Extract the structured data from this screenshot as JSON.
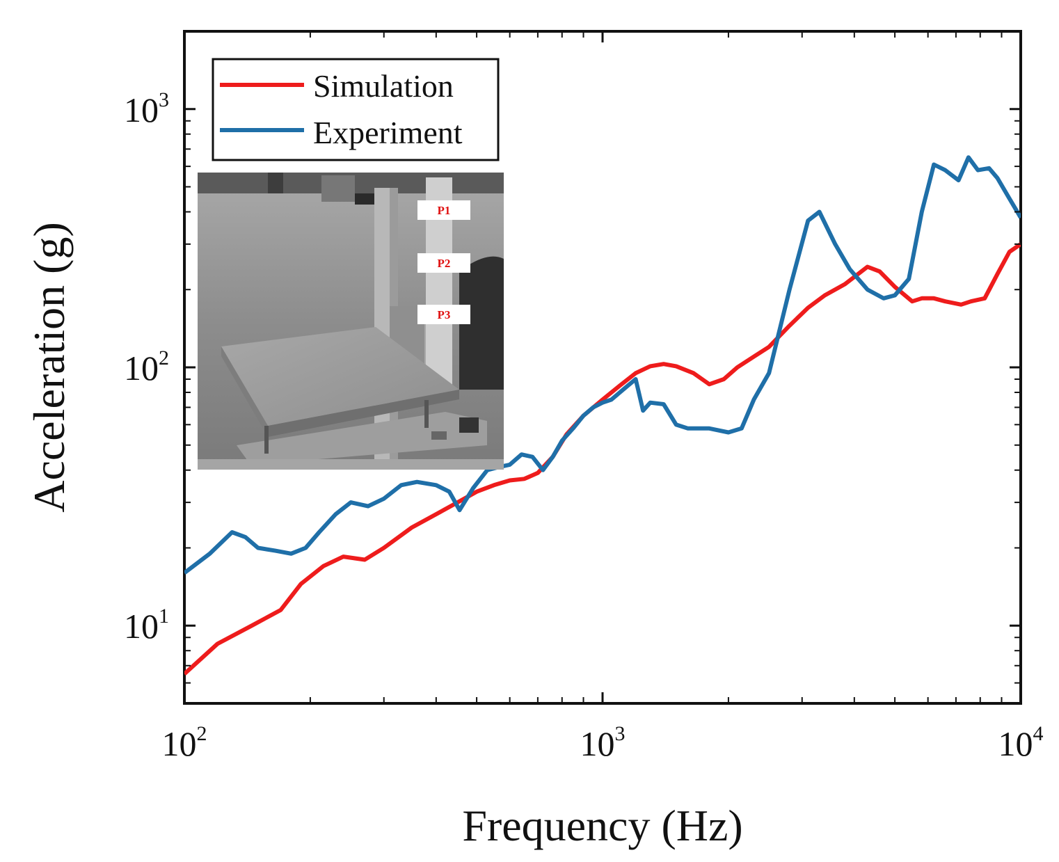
{
  "chart_data": {
    "type": "line",
    "title": "",
    "xlabel": "Frequency (Hz)",
    "ylabel": "Acceleration (g)",
    "x_scale": "log",
    "y_scale": "log",
    "xlim": [
      100,
      10000
    ],
    "ylim": [
      5,
      2000
    ],
    "x_ticks": [
      {
        "base": "10",
        "exp": "2",
        "value": 100
      },
      {
        "base": "10",
        "exp": "3",
        "value": 1000
      },
      {
        "base": "10",
        "exp": "4",
        "value": 10000
      }
    ],
    "y_ticks": [
      {
        "base": "10",
        "exp": "1",
        "value": 10
      },
      {
        "base": "10",
        "exp": "2",
        "value": 100
      },
      {
        "base": "10",
        "exp": "3",
        "value": 1000
      }
    ],
    "legend": {
      "position": "top-left"
    },
    "series": [
      {
        "name": "Simulation",
        "color": "#ee1c1c",
        "x": [
          100,
          120,
          145,
          170,
          190,
          215,
          240,
          270,
          300,
          350,
          400,
          450,
          500,
          550,
          600,
          650,
          700,
          760,
          820,
          900,
          1000,
          1100,
          1200,
          1300,
          1400,
          1500,
          1650,
          1800,
          1950,
          2100,
          2300,
          2500,
          2800,
          3100,
          3400,
          3800,
          4300,
          4600,
          5000,
          5500,
          5800,
          6200,
          6600,
          7200,
          7600,
          8200,
          8800,
          9400,
          10000
        ],
        "y": [
          6.5,
          8.5,
          10,
          11.5,
          14.5,
          17,
          18.5,
          18,
          20,
          24,
          27,
          30,
          33,
          35,
          36.5,
          37,
          39,
          45,
          55,
          65,
          75,
          85,
          95,
          101,
          103,
          101,
          95,
          86,
          90,
          100,
          110,
          120,
          145,
          170,
          190,
          210,
          245,
          235,
          205,
          180,
          185,
          185,
          180,
          175,
          180,
          185,
          230,
          280,
          300
        ]
      },
      {
        "name": "Experiment",
        "color": "#1f6fa8",
        "x": [
          100,
          115,
          130,
          140,
          150,
          165,
          180,
          195,
          210,
          230,
          250,
          275,
          300,
          330,
          360,
          400,
          430,
          455,
          490,
          530,
          560,
          600,
          640,
          680,
          720,
          760,
          800,
          850,
          900,
          950,
          1000,
          1050,
          1100,
          1150,
          1200,
          1250,
          1300,
          1400,
          1500,
          1600,
          1800,
          2000,
          2150,
          2300,
          2500,
          2800,
          3100,
          3300,
          3600,
          3900,
          4300,
          4700,
          5000,
          5400,
          5800,
          6200,
          6600,
          7100,
          7500,
          7900,
          8400,
          8800,
          9400,
          10000
        ],
        "y": [
          16,
          19,
          23,
          22,
          20,
          19.5,
          19,
          20,
          23,
          27,
          30,
          29,
          31,
          35,
          36,
          35,
          33,
          28,
          34,
          40,
          41,
          42,
          46,
          45,
          40,
          45,
          52,
          58,
          65,
          70,
          73,
          75,
          80,
          85,
          90,
          68,
          73,
          72,
          60,
          58,
          58,
          56,
          58,
          75,
          95,
          200,
          370,
          400,
          300,
          240,
          200,
          185,
          190,
          220,
          400,
          610,
          580,
          530,
          650,
          580,
          590,
          540,
          450,
          380
        ]
      }
    ]
  },
  "inset": {
    "description_labels": [
      "P1",
      "P2",
      "P3"
    ]
  }
}
